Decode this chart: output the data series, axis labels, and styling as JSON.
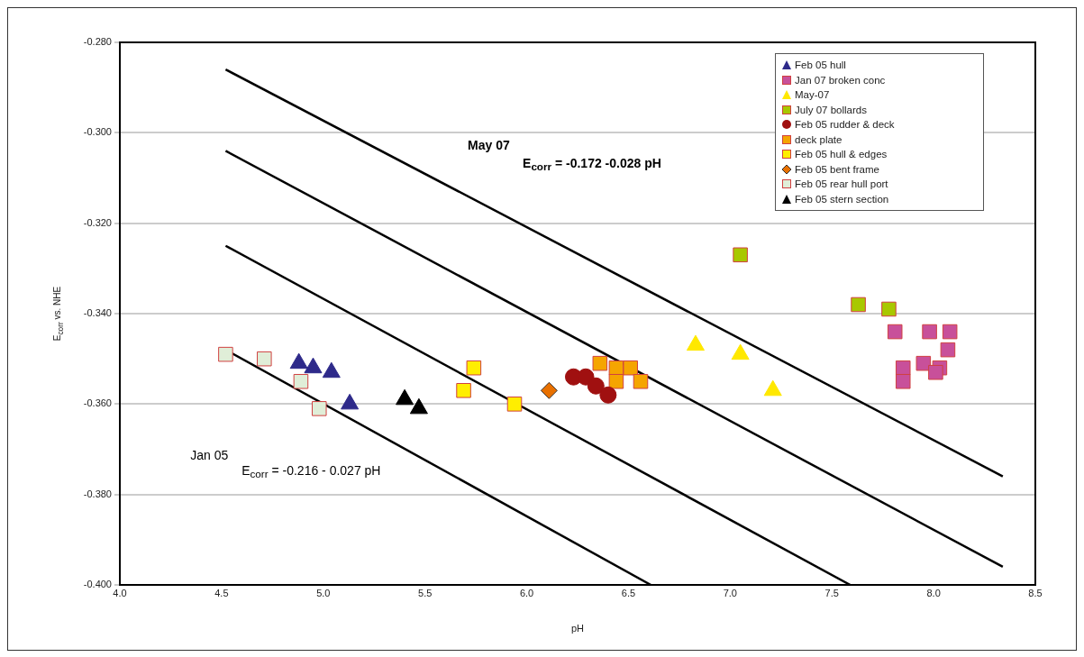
{
  "chart_data": {
    "type": "scatter",
    "xlabel": "pH",
    "ylabel": "E$_{corr}$ vs. NHE",
    "xlim": [
      4.0,
      8.5
    ],
    "xticks": [
      {
        "value": 4.0,
        "label": "4.0"
      },
      {
        "value": 4.5,
        "label": "4.5"
      },
      {
        "value": 5.0,
        "label": "5.0"
      },
      {
        "value": 5.5,
        "label": "5.5"
      },
      {
        "value": 6.0,
        "label": "6.0"
      },
      {
        "value": 6.5,
        "label": "6.5"
      },
      {
        "value": 7.0,
        "label": "7.0"
      },
      {
        "value": 7.5,
        "label": "7.5"
      },
      {
        "value": 8.0,
        "label": "8.0"
      },
      {
        "value": 8.5,
        "label": "8.5"
      }
    ],
    "ylim": [
      -0.4,
      -0.28
    ],
    "yticks": [
      {
        "value": -0.4,
        "label": "-0.400"
      },
      {
        "value": -0.38,
        "label": "-0.380"
      },
      {
        "value": -0.36,
        "label": "-0.360"
      },
      {
        "value": -0.34,
        "label": "-0.340"
      },
      {
        "value": -0.32,
        "label": "-0.320"
      },
      {
        "value": -0.3,
        "label": "-0.300"
      },
      {
        "value": -0.28,
        "label": "-0.280"
      }
    ],
    "grid": "y",
    "legend": "top right",
    "series": [
      {
        "name": "Feb 05 hull",
        "color": "#2e2a8a",
        "marker": "triangle",
        "x": [
          4.88,
          4.95,
          5.04,
          5.13
        ],
        "values": [
          -0.351,
          -0.352,
          -0.353,
          -0.36
        ]
      },
      {
        "name": "Jan 07 broken conc",
        "color": "#c8509a",
        "marker": "square",
        "x": [
          7.81,
          7.98,
          8.08,
          8.07,
          7.85,
          7.95,
          8.03,
          8.01,
          7.85
        ],
        "values": [
          -0.344,
          -0.344,
          -0.344,
          -0.348,
          -0.352,
          -0.351,
          -0.352,
          -0.353,
          -0.355
        ]
      },
      {
        "name": "May-07",
        "color": "#ffe800",
        "marker": "triangle",
        "x": [
          6.83,
          7.05,
          7.21
        ],
        "values": [
          -0.347,
          -0.349,
          -0.357
        ]
      },
      {
        "name": "July 07 bollards",
        "color": "#a8c800",
        "marker": "square",
        "x": [
          7.05,
          7.63,
          7.78
        ],
        "values": [
          -0.327,
          -0.338,
          -0.339
        ]
      },
      {
        "name": "Feb 05 rudder & deck",
        "color": "#a01010",
        "marker": "circle",
        "x": [
          6.23,
          6.29,
          6.34,
          6.4
        ],
        "values": [
          -0.354,
          -0.354,
          -0.356,
          -0.358
        ]
      },
      {
        "name": "deck plate",
        "color": "#f5a500",
        "marker": "square",
        "x": [
          6.36,
          6.44,
          6.51,
          6.44,
          6.56
        ],
        "values": [
          -0.351,
          -0.352,
          -0.352,
          -0.355,
          -0.355
        ]
      },
      {
        "name": "Feb 05 hull & edges",
        "color": "#ffee00",
        "marker": "square",
        "x": [
          5.74,
          5.69,
          5.94
        ],
        "values": [
          -0.352,
          -0.357,
          -0.36
        ]
      },
      {
        "name": "Feb 05 bent frame",
        "color": "#e87000",
        "marker": "diamond",
        "x": [
          6.11
        ],
        "values": [
          -0.357
        ]
      },
      {
        "name": "Feb 05 rear hull port",
        "color": "#e0eed8",
        "marker": "square",
        "x": [
          4.52,
          4.71,
          4.89,
          4.98
        ],
        "values": [
          -0.349,
          -0.35,
          -0.355,
          -0.361
        ]
      },
      {
        "name": "Feb 05 stern section",
        "color": "#000000",
        "marker": "triangle",
        "x": [
          5.4,
          5.47
        ],
        "values": [
          -0.359,
          -0.361
        ]
      },
      {
        "type": "line",
        "color": "#000000",
        "marker": "none",
        "x": [
          4.52,
          8.34
        ],
        "values": [
          -0.286,
          -0.376
        ]
      },
      {
        "type": "line",
        "color": "#000000",
        "marker": "none",
        "x": [
          4.52,
          8.34
        ],
        "values": [
          -0.304,
          -0.396
        ]
      },
      {
        "type": "line",
        "color": "#000000",
        "marker": "none",
        "x": [
          4.52,
          7.59
        ],
        "values": [
          -0.325,
          -0.4
        ]
      },
      {
        "type": "line",
        "color": "#000000",
        "marker": "none",
        "x": [
          4.52,
          6.61
        ],
        "values": [
          -0.348,
          -0.4
        ]
      }
    ],
    "annotations": [
      "May 07",
      "E$_{corr}$ = -0.172 -0.028 pH",
      "Jan 05",
      "E$_{corr}$ = -0.216 - 0.027 pH"
    ]
  }
}
